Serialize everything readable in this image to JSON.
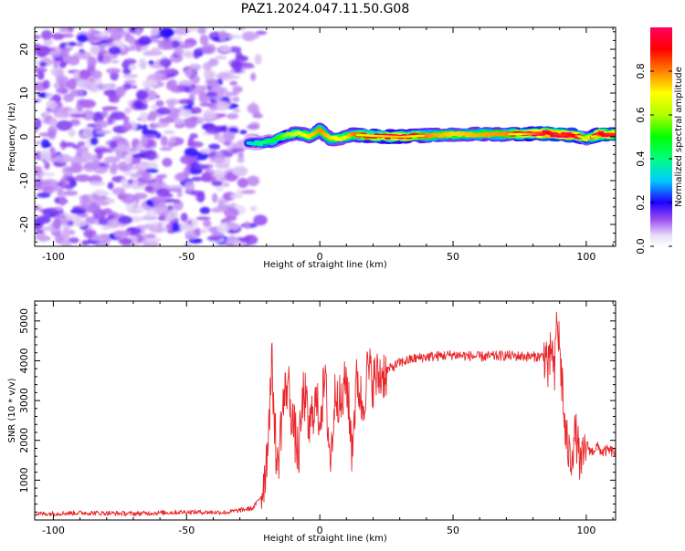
{
  "title": "PAZ1.2024.047.11.50.G08",
  "chart_data": [
    {
      "type": "heatmap",
      "xlabel": "Height of straight line (km)",
      "ylabel": "Frequency (Hz)",
      "xlim": [
        -107,
        111
      ],
      "ylim": [
        -25,
        25
      ],
      "xticks": [
        -100,
        -50,
        0,
        50,
        100
      ],
      "yticks": [
        -20,
        -10,
        0,
        10,
        20
      ],
      "colorbar": {
        "label": "Normalized spectral amplitude",
        "range": [
          0.0,
          1.0
        ],
        "ticks": [
          "0.0",
          "0.2",
          "0.4",
          "0.6",
          "0.8"
        ],
        "tick_values": [
          0.0,
          0.2,
          0.4,
          0.6,
          0.8
        ],
        "colormap": "gist_rainbow_r",
        "colors": [
          "#e8dcf8",
          "#c9a8f0",
          "#8a2be2",
          "#0000ff",
          "#00ccff",
          "#00ff80",
          "#00ff00",
          "#ffff00",
          "#ff8000",
          "#ff0000",
          "#ff0060"
        ]
      },
      "noise_region_x": [
        -107,
        -20
      ],
      "noise_region_y": [
        -25,
        25
      ],
      "ridge": {
        "x": [
          -27,
          -22,
          -18,
          -12,
          -8,
          -4,
          0,
          4,
          8,
          12,
          20,
          30,
          40,
          50,
          60,
          70,
          80,
          85,
          90,
          95,
          100,
          105,
          111
        ],
        "freq": [
          -1.2,
          -1.5,
          -1.0,
          0.5,
          0.8,
          0.2,
          1.5,
          -0.5,
          -0.3,
          0.5,
          0.2,
          0.0,
          0.3,
          0.5,
          0.6,
          0.6,
          0.7,
          0.8,
          0.5,
          0.4,
          -0.4,
          0.6,
          0.6
        ],
        "amplitude": [
          0.25,
          0.3,
          0.35,
          0.45,
          0.5,
          0.55,
          0.6,
          0.55,
          0.5,
          0.6,
          0.7,
          0.75,
          0.6,
          0.55,
          0.58,
          0.6,
          0.8,
          0.9,
          0.85,
          0.9,
          0.45,
          0.9,
          0.85
        ]
      }
    },
    {
      "type": "line",
      "xlabel": "Height of straight line (km)",
      "ylabel": "SNR (10 * v/v)",
      "xlim": [
        -107,
        111
      ],
      "ylim": [
        0,
        5500
      ],
      "xticks": [
        -100,
        -50,
        0,
        50,
        100
      ],
      "yticks": [
        1000,
        2000,
        3000,
        4000,
        5000
      ],
      "series": [
        {
          "color": "#e8262a",
          "x": [
            -107,
            -90,
            -70,
            -50,
            -35,
            -25,
            -22,
            -20,
            -18,
            -16,
            -14,
            -12,
            -10,
            -8,
            -6,
            -4,
            -2,
            0,
            2,
            4,
            6,
            8,
            10,
            12,
            14,
            16,
            18,
            20,
            25,
            30,
            35,
            40,
            45,
            50,
            60,
            70,
            80,
            85,
            86,
            87,
            88,
            89,
            90,
            91,
            92,
            94,
            96,
            98,
            100,
            102,
            104,
            106,
            108,
            111
          ],
          "y": [
            150,
            180,
            160,
            200,
            190,
            300,
            600,
            1500,
            3900,
            1200,
            2800,
            3500,
            2400,
            1600,
            3300,
            2200,
            3000,
            2600,
            3500,
            1400,
            3400,
            2800,
            3600,
            1800,
            3600,
            2800,
            3800,
            3500,
            3750,
            3950,
            4050,
            4100,
            4120,
            4150,
            4100,
            4130,
            4100,
            4120,
            3600,
            4500,
            3400,
            5200,
            4200,
            3400,
            2200,
            1500,
            2200,
            1300,
            1900,
            1700,
            1850,
            1700,
            1750,
            1700
          ]
        }
      ]
    }
  ]
}
